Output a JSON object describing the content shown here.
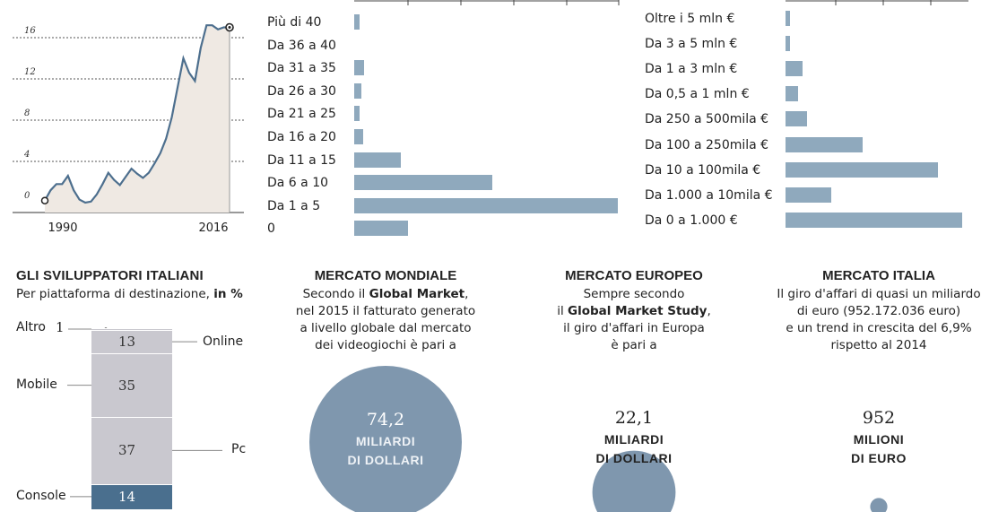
{
  "colors": {
    "bar": "#8fa9bd",
    "stack_light": "#c9c8cf",
    "stack_dark": "#4a6f8e",
    "circle": "#7f97ae",
    "area": "#efe9e3"
  },
  "chart_data": [
    {
      "type": "area",
      "x_ticks": [
        "1990",
        "2016"
      ],
      "y_ticks": [
        "0",
        "4",
        "8",
        "12",
        "16"
      ],
      "ylim": [
        0,
        18
      ],
      "x": [
        1985,
        1986,
        1987,
        1988,
        1989,
        1990,
        1991,
        1992,
        1993,
        1994,
        1995,
        1996,
        1997,
        1998,
        1999,
        2000,
        2001,
        2002,
        2003,
        2004,
        2005,
        2006,
        2007,
        2008,
        2009,
        2010,
        2011,
        2012,
        2013,
        2014,
        2015,
        2016,
        2017
      ],
      "y": [
        0.2,
        1.2,
        1.8,
        1.8,
        2.6,
        1.2,
        0.3,
        0,
        0.1,
        0.8,
        1.8,
        2.9,
        2.2,
        1.7,
        2.5,
        3.3,
        2.8,
        2.4,
        2.9,
        3.8,
        4.8,
        6.2,
        8.3,
        11.2,
        14.0,
        12.6,
        11.8,
        15.0,
        17.2,
        17.2,
        16.8,
        17.0,
        17.0
      ]
    },
    {
      "type": "bar",
      "orientation": "horizontal",
      "categories": [
        "Più di 40",
        "Da 36 a 40",
        "Da 31 a 35",
        "Da 26 a 30",
        "Da 21 a 25",
        "Da 16 a 20",
        "Da 11 a 15",
        "Da 6 a 10",
        "Da 1 a 5",
        "0"
      ],
      "values": [
        2,
        0,
        4,
        3,
        2,
        3.5,
        19,
        56,
        107,
        22
      ],
      "xlim": [
        0,
        110
      ]
    },
    {
      "type": "bar",
      "orientation": "horizontal",
      "categories": [
        "Oltre i 5 mln €",
        "Da 3 a 5 mln €",
        "Da 1 a 3 mln €",
        "Da 0,5 a 1 mln €",
        "Da 250 a 500mila €",
        "Da 100 a 250mila €",
        "Da 10 a 100mila €",
        "Da 1.000 a 10mila €",
        "Da 0 a 1.000 €"
      ],
      "values": [
        2,
        2,
        7,
        5,
        9,
        32,
        63,
        19,
        73
      ],
      "xlim": [
        0,
        78
      ]
    },
    {
      "type": "bar",
      "stacked": true,
      "title": "GLI SVILUPPATORI ITALIANI",
      "subtitle": "Per piattaforma di destinazione,",
      "subtitle_unit": "in %",
      "segments": [
        {
          "label": "Altro",
          "value": 1
        },
        {
          "label": "Online",
          "value": 13
        },
        {
          "label": "Mobile",
          "value": 35
        },
        {
          "label": "Pc",
          "value": 37
        },
        {
          "label": "Console",
          "value": 14
        }
      ]
    }
  ],
  "markets": [
    {
      "title": "MERCATO MONDIALE",
      "lines": [
        [
          {
            "t": "Secondo il "
          },
          {
            "t": "Global Market",
            "b": true
          },
          {
            "t": ","
          }
        ],
        [
          {
            "t": "nel 2015 il fatturato generato"
          }
        ],
        [
          {
            "t": "a livello globale dal mercato"
          }
        ],
        [
          {
            "t": "dei videogiochi è pari a"
          }
        ]
      ],
      "value": "74,2",
      "unit1": "MILIARDI",
      "unit2": "DI DOLLARI",
      "amount": 74.2
    },
    {
      "title": "MERCATO EUROPEO",
      "lines": [
        [
          {
            "t": "Sempre secondo"
          }
        ],
        [
          {
            "t": "il "
          },
          {
            "t": "Global Market Study",
            "b": true
          },
          {
            "t": ","
          }
        ],
        [
          {
            "t": "il giro d'affari in Europa"
          }
        ],
        [
          {
            "t": "è pari a"
          }
        ]
      ],
      "value": "22,1",
      "unit1": "MILIARDI",
      "unit2": "DI DOLLARI",
      "amount": 22.1
    },
    {
      "title": "MERCATO ITALIA",
      "lines": [
        [
          {
            "t": "Il giro d'affari di quasi un miliardo"
          }
        ],
        [
          {
            "t": "di euro (952.172.036 euro)"
          }
        ],
        [
          {
            "t": "e un trend in crescita del 6,9%"
          }
        ],
        [
          {
            "t": "rispetto al 2014"
          }
        ]
      ],
      "value": "952",
      "unit1": "MILIONI",
      "unit2": "DI EURO",
      "amount": 0.95
    }
  ]
}
